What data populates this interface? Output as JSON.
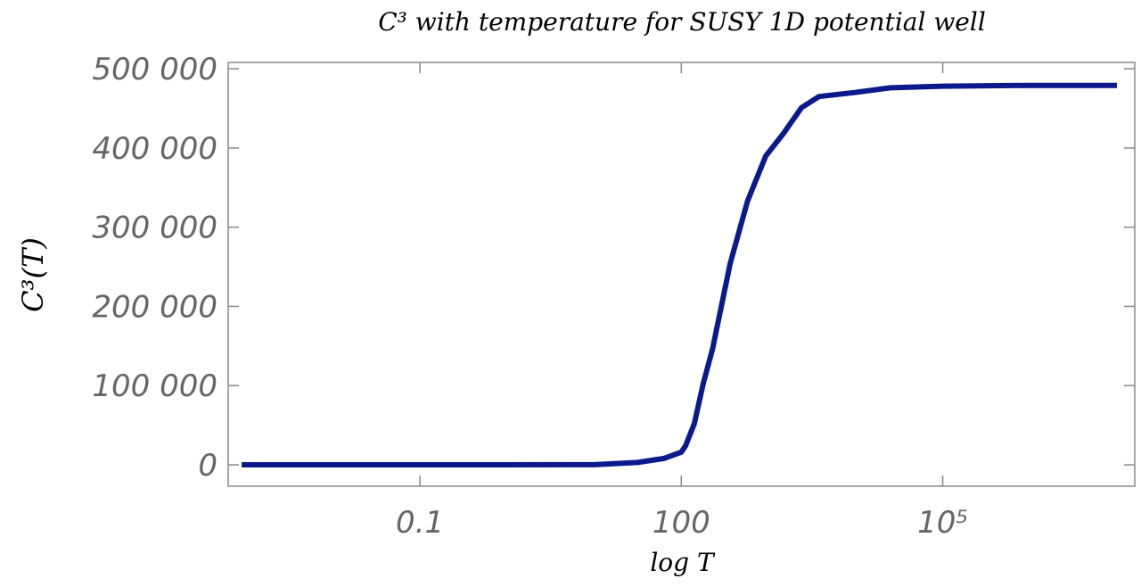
{
  "chart_data": {
    "type": "line",
    "title": "C³ with temperature for SUSY 1D potential well",
    "x_label": "log T",
    "y_label": "C³(T)",
    "x_scale": "log",
    "x": [
      0.0009,
      0.01,
      0.1,
      1,
      10,
      31.6,
      63.1,
      100,
      112,
      141,
      178,
      229,
      363,
      575,
      933,
      1479,
      2399,
      3802,
      9772,
      25119,
      100000,
      1000000,
      10000000
    ],
    "series": [
      {
        "name": "C³(T)",
        "color": "#0a1a8c",
        "values": [
          0,
          0,
          0,
          0,
          200,
          3000,
          8000,
          16000,
          24000,
          52000,
          102000,
          147000,
          254000,
          333000,
          390000,
          418000,
          451000,
          465000,
          470000,
          476000,
          478000,
          479000,
          479000
        ]
      }
    ],
    "xlim": [
      0.00063,
      16000000
    ],
    "xticks": [
      0.1,
      100,
      {
        "value": 100000,
        "label": "10⁵"
      }
    ],
    "ylim": [
      -27000,
      508000
    ],
    "yticks": [
      0,
      {
        "value": 100000,
        "label": "100 000"
      },
      {
        "value": 200000,
        "label": "200 000"
      },
      {
        "value": 300000,
        "label": "300 000"
      },
      {
        "value": 400000,
        "label": "400 000"
      },
      {
        "value": 500000,
        "label": "500 000"
      }
    ]
  }
}
